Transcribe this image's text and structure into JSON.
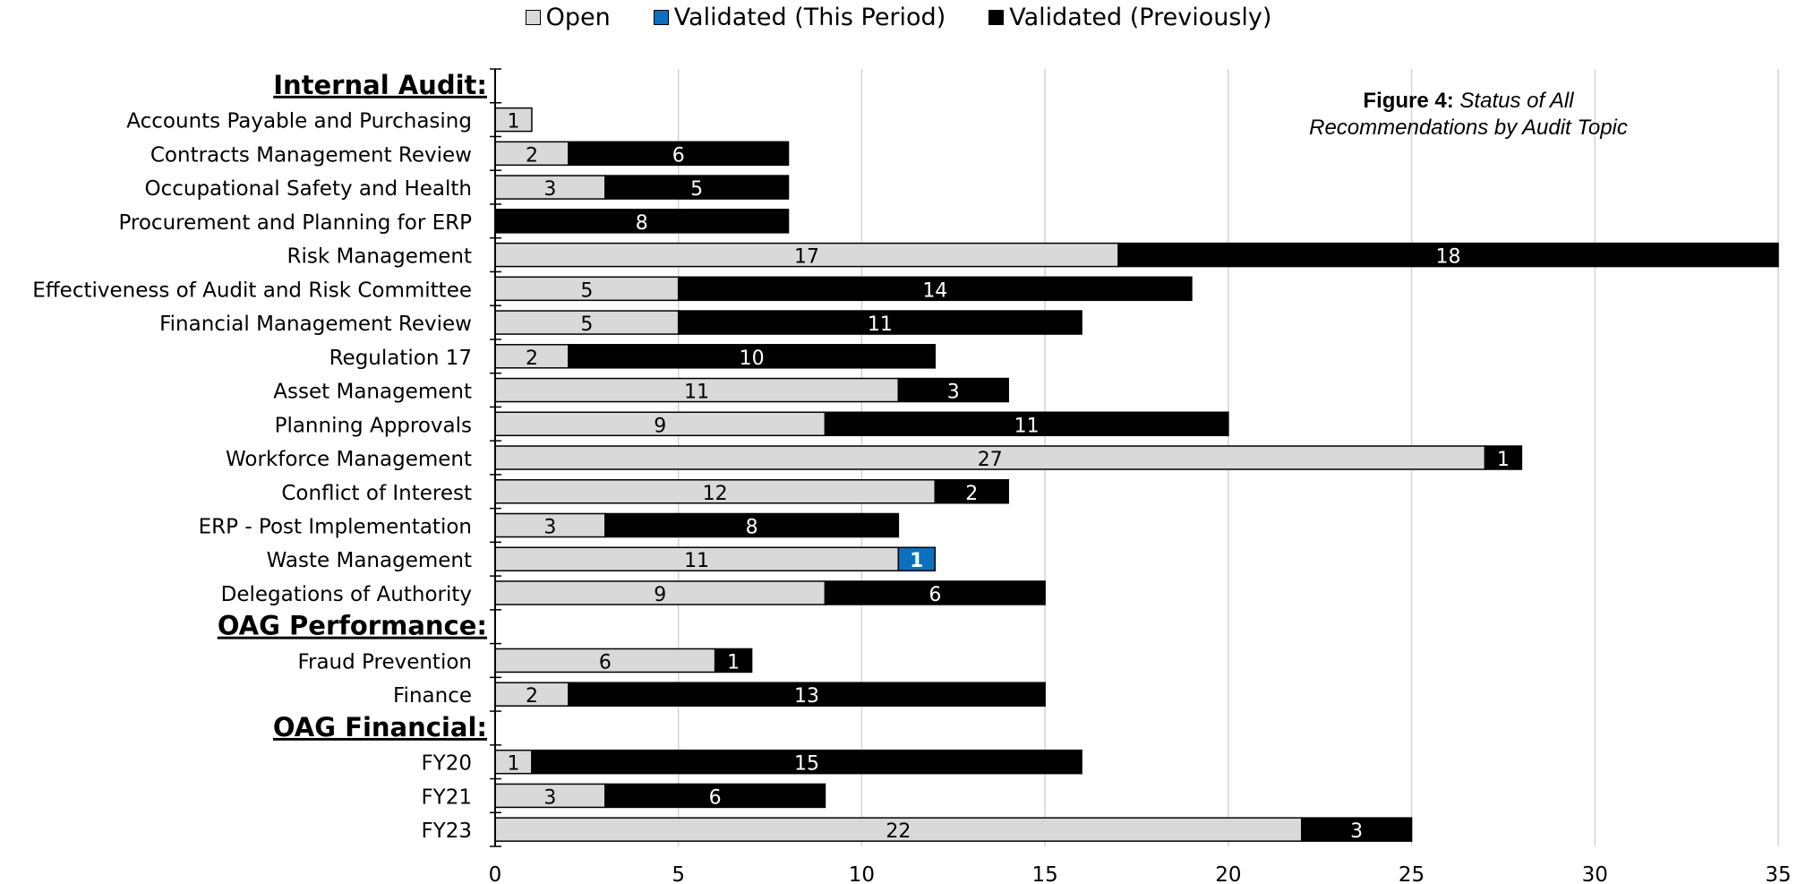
{
  "legend": [
    {
      "label": "Open",
      "color": "#d9d9d9"
    },
    {
      "label": "Validated (This Period)",
      "color": "#0a70c0"
    },
    {
      "label": "Validated (Previously)",
      "color": "#000000"
    }
  ],
  "caption": {
    "bold": "Figure 4:",
    "italic_line1": "Status of All",
    "italic_line2": "Recommendations by Audit Topic"
  },
  "chart_data": {
    "type": "bar",
    "orientation": "horizontal",
    "stacked": true,
    "title": "Figure 4: Status of All Recommendations by Audit Topic",
    "xlim": [
      0,
      35
    ],
    "xticks": [
      0,
      5,
      10,
      15,
      20,
      25,
      30,
      35
    ],
    "grid": "vertical",
    "legend_position": "top",
    "series_names": [
      "Open",
      "Validated (This Period)",
      "Validated (Previously)"
    ],
    "rows": [
      {
        "label": "Internal Audit:",
        "header": true
      },
      {
        "label": "Accounts Payable and Purchasing",
        "values": [
          1,
          0,
          0
        ]
      },
      {
        "label": "Contracts Management Review",
        "values": [
          2,
          0,
          6
        ]
      },
      {
        "label": "Occupational Safety and Health",
        "values": [
          3,
          0,
          5
        ]
      },
      {
        "label": "Procurement and Planning for ERP",
        "values": [
          0,
          0,
          8
        ]
      },
      {
        "label": "Risk Management",
        "values": [
          17,
          0,
          18
        ]
      },
      {
        "label": "Effectiveness of Audit and Risk Committee",
        "values": [
          5,
          0,
          14
        ]
      },
      {
        "label": "Financial Management Review",
        "values": [
          5,
          0,
          11
        ]
      },
      {
        "label": "Regulation 17",
        "values": [
          2,
          0,
          10
        ]
      },
      {
        "label": "Asset Management",
        "values": [
          11,
          0,
          3
        ]
      },
      {
        "label": "Planning Approvals",
        "values": [
          9,
          0,
          11
        ]
      },
      {
        "label": "Workforce Management",
        "values": [
          27,
          0,
          1
        ]
      },
      {
        "label": "Conflict of Interest",
        "values": [
          12,
          0,
          2
        ]
      },
      {
        "label": "ERP - Post Implementation",
        "values": [
          3,
          0,
          8
        ]
      },
      {
        "label": "Waste Management",
        "values": [
          11,
          1,
          0
        ]
      },
      {
        "label": "Delegations of Authority",
        "values": [
          9,
          0,
          6
        ]
      },
      {
        "label": "OAG Performance:",
        "header": true
      },
      {
        "label": "Fraud Prevention",
        "values": [
          6,
          0,
          1
        ]
      },
      {
        "label": "Finance",
        "values": [
          2,
          0,
          13
        ]
      },
      {
        "label": "OAG Financial:",
        "header": true
      },
      {
        "label": "FY20",
        "values": [
          1,
          0,
          15
        ]
      },
      {
        "label": "FY21",
        "values": [
          3,
          0,
          6
        ]
      },
      {
        "label": "FY23",
        "values": [
          22,
          0,
          3
        ]
      }
    ]
  }
}
